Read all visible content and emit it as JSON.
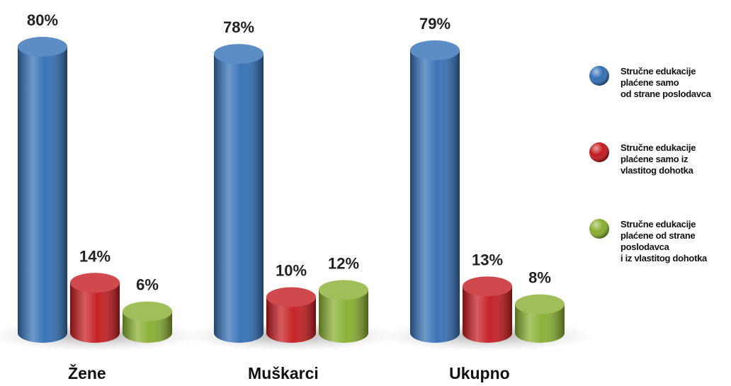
{
  "chart_data": {
    "type": "bar",
    "categories": [
      "Žene",
      "Muškarci",
      "Ukupno"
    ],
    "series": [
      {
        "name": "Stručne edukacije\nplaćene samo\nod strane poslodavca",
        "color": "#2f6db4",
        "values": [
          80,
          78,
          79
        ],
        "value_labels": [
          "80%",
          "78%",
          "79%"
        ]
      },
      {
        "name": "Stručne edukacije\nplaćene samo iz\nvlastitog dohotka",
        "color": "#c3171b",
        "values": [
          14,
          10,
          13
        ],
        "value_labels": [
          "14%",
          "10%",
          "13%"
        ]
      },
      {
        "name": "Stručne edukacije\nplaćene od strane\nposlodavca\ni iz vlastitog dohotka",
        "color": "#86ad2c",
        "values": [
          6,
          12,
          8
        ],
        "value_labels": [
          "6%",
          "12%",
          "8%"
        ]
      }
    ],
    "legend": "right"
  }
}
